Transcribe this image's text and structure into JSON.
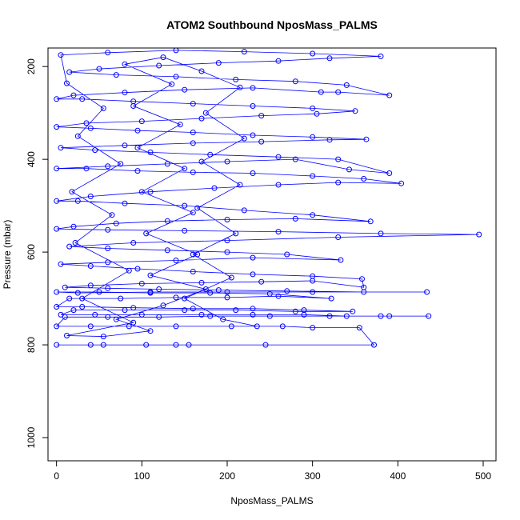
{
  "chart_data": {
    "type": "scatter",
    "title": "ATOM2 Southbound NposMass_PALMS",
    "xlabel": "NposMass_PALMS",
    "ylabel": "Pressure (mbar)",
    "xlim": [
      -10,
      515
    ],
    "ylim": [
      1050,
      160
    ],
    "y_reversed": true,
    "x_ticks": [
      0,
      100,
      200,
      300,
      400,
      500
    ],
    "y_ticks": [
      200,
      400,
      600,
      800,
      1000
    ],
    "grid": false,
    "legend": "none",
    "marker": "open-circle",
    "connected": true,
    "series": [
      {
        "color": "#0000ff",
        "points": [
          [
            0,
            800
          ],
          [
            40,
            800
          ],
          [
            55,
            800
          ],
          [
            105,
            800
          ],
          [
            140,
            800
          ],
          [
            155,
            800
          ],
          [
            245,
            800
          ],
          [
            372,
            800
          ],
          [
            355,
            763
          ],
          [
            300,
            763
          ],
          [
            265,
            760
          ],
          [
            205,
            760
          ],
          [
            140,
            760
          ],
          [
            85,
            760
          ],
          [
            40,
            760
          ],
          [
            0,
            760
          ],
          [
            10,
            740
          ],
          [
            60,
            740
          ],
          [
            120,
            740
          ],
          [
            180,
            738
          ],
          [
            250,
            738
          ],
          [
            320,
            738
          ],
          [
            380,
            738
          ],
          [
            436,
            738
          ],
          [
            390,
            738
          ],
          [
            340,
            738
          ],
          [
            290,
            735
          ],
          [
            230,
            735
          ],
          [
            170,
            735
          ],
          [
            100,
            735
          ],
          [
            45,
            735
          ],
          [
            5,
            735
          ],
          [
            20,
            725
          ],
          [
            80,
            725
          ],
          [
            150,
            725
          ],
          [
            210,
            725
          ],
          [
            280,
            728
          ],
          [
            347,
            728
          ],
          [
            290,
            725
          ],
          [
            230,
            722
          ],
          [
            160,
            722
          ],
          [
            90,
            720
          ],
          [
            30,
            718
          ],
          [
            0,
            718
          ],
          [
            15,
            700
          ],
          [
            75,
            700
          ],
          [
            140,
            698
          ],
          [
            200,
            698
          ],
          [
            260,
            695
          ],
          [
            322,
            700
          ],
          [
            250,
            690
          ],
          [
            180,
            688
          ],
          [
            110,
            688
          ],
          [
            50,
            686
          ],
          [
            0,
            686
          ],
          [
            25,
            688
          ],
          [
            110,
            686
          ],
          [
            200,
            686
          ],
          [
            300,
            686
          ],
          [
            434,
            686
          ],
          [
            360,
            686
          ],
          [
            270,
            684
          ],
          [
            190,
            682
          ],
          [
            120,
            680
          ],
          [
            60,
            678
          ],
          [
            10,
            676
          ],
          [
            40,
            672
          ],
          [
            100,
            668
          ],
          [
            170,
            666
          ],
          [
            240,
            664
          ],
          [
            300,
            662
          ],
          [
            360,
            676
          ],
          [
            358,
            658
          ],
          [
            300,
            652
          ],
          [
            230,
            648
          ],
          [
            160,
            642
          ],
          [
            95,
            636
          ],
          [
            40,
            630
          ],
          [
            5,
            626
          ],
          [
            60,
            622
          ],
          [
            140,
            618
          ],
          [
            230,
            612
          ],
          [
            333,
            617
          ],
          [
            270,
            605
          ],
          [
            200,
            600
          ],
          [
            130,
            596
          ],
          [
            60,
            592
          ],
          [
            15,
            588
          ],
          [
            90,
            580
          ],
          [
            200,
            575
          ],
          [
            330,
            568
          ],
          [
            495,
            562
          ],
          [
            380,
            560
          ],
          [
            260,
            556
          ],
          [
            150,
            554
          ],
          [
            60,
            552
          ],
          [
            0,
            550
          ],
          [
            20,
            545
          ],
          [
            70,
            538
          ],
          [
            130,
            533
          ],
          [
            200,
            530
          ],
          [
            280,
            528
          ],
          [
            368,
            534
          ],
          [
            300,
            520
          ],
          [
            220,
            510
          ],
          [
            150,
            500
          ],
          [
            80,
            495
          ],
          [
            25,
            490
          ],
          [
            0,
            490
          ],
          [
            40,
            480
          ],
          [
            110,
            470
          ],
          [
            185,
            462
          ],
          [
            260,
            455
          ],
          [
            330,
            450
          ],
          [
            404,
            452
          ],
          [
            360,
            442
          ],
          [
            300,
            436
          ],
          [
            230,
            430
          ],
          [
            160,
            428
          ],
          [
            95,
            425
          ],
          [
            35,
            420
          ],
          [
            0,
            420
          ],
          [
            60,
            415
          ],
          [
            130,
            410
          ],
          [
            200,
            405
          ],
          [
            280,
            400
          ],
          [
            343,
            422
          ],
          [
            390,
            430
          ],
          [
            330,
            400
          ],
          [
            260,
            395
          ],
          [
            180,
            390
          ],
          [
            110,
            385
          ],
          [
            45,
            380
          ],
          [
            5,
            375
          ],
          [
            80,
            370
          ],
          [
            160,
            365
          ],
          [
            240,
            362
          ],
          [
            320,
            358
          ],
          [
            363,
            357
          ],
          [
            300,
            352
          ],
          [
            230,
            348
          ],
          [
            160,
            342
          ],
          [
            95,
            338
          ],
          [
            40,
            333
          ],
          [
            0,
            330
          ],
          [
            35,
            322
          ],
          [
            100,
            318
          ],
          [
            170,
            312
          ],
          [
            240,
            306
          ],
          [
            305,
            302
          ],
          [
            350,
            296
          ],
          [
            300,
            290
          ],
          [
            230,
            285
          ],
          [
            160,
            280
          ],
          [
            90,
            275
          ],
          [
            30,
            270
          ],
          [
            0,
            270
          ],
          [
            20,
            262
          ],
          [
            80,
            256
          ],
          [
            150,
            250
          ],
          [
            230,
            246
          ],
          [
            310,
            255
          ],
          [
            330,
            255
          ],
          [
            390,
            262
          ],
          [
            340,
            240
          ],
          [
            280,
            232
          ],
          [
            210,
            228
          ],
          [
            140,
            222
          ],
          [
            70,
            218
          ],
          [
            15,
            212
          ],
          [
            50,
            205
          ],
          [
            120,
            198
          ],
          [
            190,
            192
          ],
          [
            260,
            188
          ],
          [
            320,
            182
          ],
          [
            380,
            178
          ],
          [
            300,
            172
          ],
          [
            220,
            168
          ],
          [
            140,
            165
          ],
          [
            60,
            170
          ],
          [
            5,
            175
          ],
          [
            12,
            236
          ],
          [
            55,
            290
          ],
          [
            25,
            350
          ],
          [
            75,
            410
          ],
          [
            18,
            470
          ],
          [
            65,
            520
          ],
          [
            22,
            580
          ],
          [
            85,
            640
          ],
          [
            30,
            700
          ],
          [
            90,
            752
          ],
          [
            12,
            780
          ],
          [
            55,
            782
          ],
          [
            110,
            770
          ],
          [
            70,
            745
          ],
          [
            125,
            715
          ],
          [
            175,
            680
          ],
          [
            110,
            650
          ],
          [
            165,
            605
          ],
          [
            105,
            560
          ],
          [
            160,
            515
          ],
          [
            100,
            470
          ],
          [
            150,
            420
          ],
          [
            95,
            375
          ],
          [
            145,
            325
          ],
          [
            90,
            285
          ],
          [
            135,
            238
          ],
          [
            80,
            195
          ],
          [
            125,
            180
          ],
          [
            170,
            210
          ],
          [
            215,
            245
          ],
          [
            175,
            300
          ],
          [
            220,
            355
          ],
          [
            170,
            405
          ],
          [
            215,
            455
          ],
          [
            165,
            505
          ],
          [
            210,
            560
          ],
          [
            160,
            605
          ],
          [
            205,
            655
          ],
          [
            150,
            700
          ],
          [
            195,
            745
          ],
          [
            235,
            760
          ]
        ]
      }
    ]
  }
}
